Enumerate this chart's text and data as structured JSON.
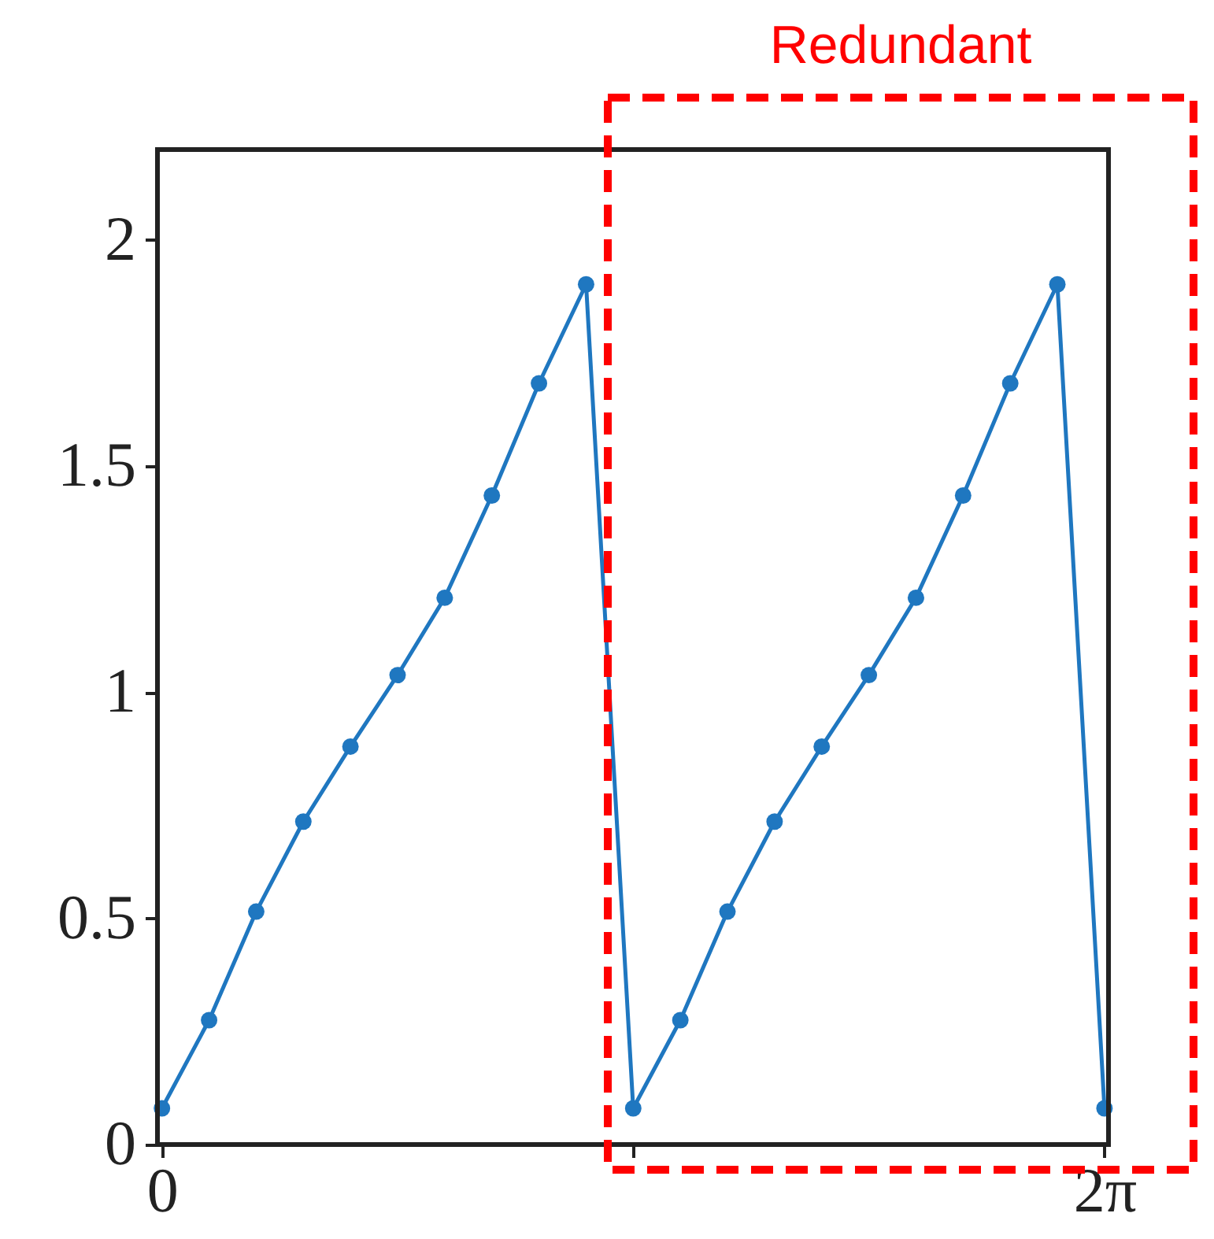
{
  "chart_data": {
    "type": "line",
    "xlim": [
      -0.03,
      6.31
    ],
    "ylim": [
      0,
      2.2
    ],
    "xticks": [
      0,
      {
        "value": 3.1416,
        "label": null
      },
      {
        "value": 6.2832,
        "label": "2π"
      }
    ],
    "yticks": [
      0,
      0.5,
      1,
      1.5,
      2
    ],
    "grid": false,
    "marker": "circle",
    "line_style": "solid",
    "series": [
      {
        "color": "#1f77c0",
        "x": [
          0,
          0.3142,
          0.6283,
          0.9425,
          1.2566,
          1.5708,
          1.885,
          2.1991,
          2.5133,
          2.8274,
          3.1416,
          3.4558,
          3.7699,
          4.0841,
          4.3982,
          4.7124,
          5.0265,
          5.3407,
          5.6549,
          5.969,
          6.2832
        ],
        "values": [
          0.08,
          0.275,
          0.515,
          0.714,
          0.88,
          1.038,
          1.209,
          1.435,
          1.683,
          1.902,
          0.08,
          0.275,
          0.515,
          0.714,
          0.88,
          1.038,
          1.209,
          1.435,
          1.683,
          1.902,
          0.08
        ]
      }
    ],
    "annotations": [
      "Redundant"
    ]
  }
}
